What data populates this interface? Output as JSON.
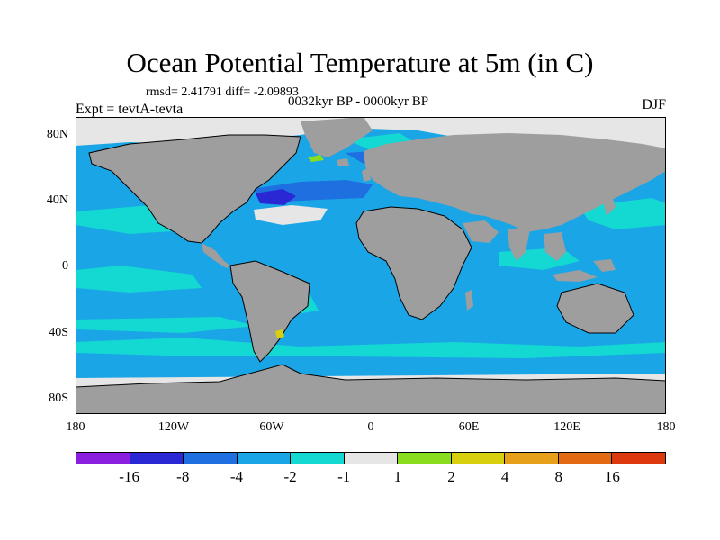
{
  "title": "Ocean Potential Temperature at 5m (in C)",
  "stats": "rmsd= 2.41791 diff= -2.09893",
  "period": "0032kyr BP - 0000kyr BP",
  "experiment": "Expt = tevtA-tevta",
  "season": "DJF",
  "axes": {
    "y_ticks": [
      "80N",
      "40N",
      "0",
      "40S",
      "80S"
    ],
    "x_ticks": [
      "180",
      "120W",
      "60W",
      "0",
      "60E",
      "120E",
      "180"
    ]
  },
  "colorbar": {
    "colors": [
      "#8a1fe0",
      "#2a28d4",
      "#1e6fe0",
      "#1aa5e6",
      "#14d8d2",
      "#e6e6e6",
      "#8adc1e",
      "#d8cf0e",
      "#e6a01a",
      "#e26a12",
      "#dc3a0e"
    ],
    "labels": [
      "-16",
      "-8",
      "-4",
      "-2",
      "-1",
      "1",
      "2",
      "4",
      "8",
      "16"
    ]
  },
  "map": {
    "ocean_color": "#1aa5e6",
    "land_color": "#9e9e9e",
    "ice_color": "#e6e6e6",
    "cyan_color": "#14d8d2",
    "deep_blue_color": "#2a28d4",
    "mid_blue_color": "#1e6fe0"
  }
}
